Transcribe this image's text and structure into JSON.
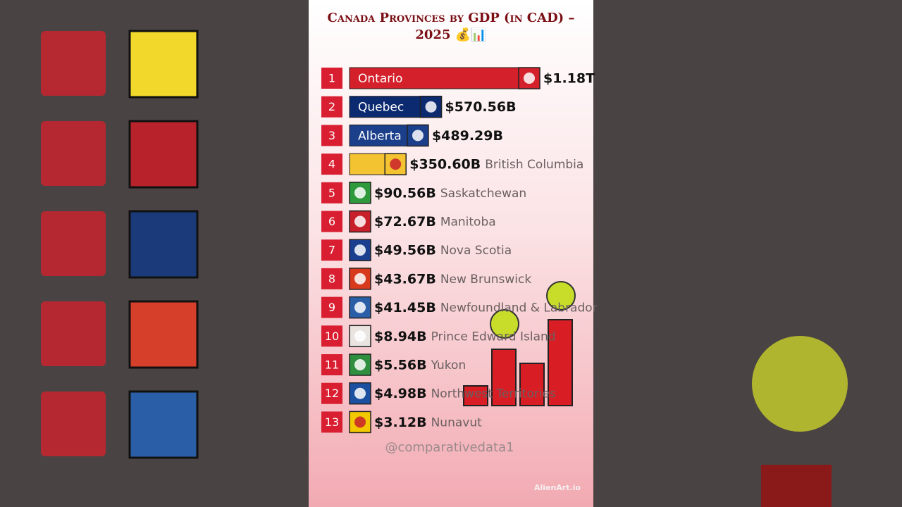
{
  "chart_data": {
    "type": "bar",
    "orientation": "horizontal",
    "title": "Canada Provinces by GDP (in CAD) – 2025 💰📊",
    "ranks": [
      "1",
      "2",
      "3",
      "4",
      "5",
      "6",
      "7",
      "8",
      "9",
      "10",
      "11",
      "12",
      "13"
    ],
    "categories": [
      "Ontario",
      "Quebec",
      "Alberta",
      "British Columbia",
      "Saskatchewan",
      "Manitoba",
      "Nova Scotia",
      "New Brunswick",
      "Newfoundland & Labrador",
      "Prince Edward Island",
      "Yukon",
      "Northwest Territories",
      "Nunavut"
    ],
    "values": [
      1180,
      570.56,
      489.29,
      350.6,
      90.56,
      72.67,
      49.56,
      43.67,
      41.45,
      8.94,
      5.56,
      4.98,
      3.12
    ],
    "value_labels": [
      "$1.18T",
      "$570.56B",
      "$489.29B",
      "$350.60B",
      "$90.56B",
      "$72.67B",
      "$49.56B",
      "$43.67B",
      "$41.45B",
      "$8.94B",
      "$5.56B",
      "$4.98B",
      "$3.12B"
    ],
    "colors": [
      "#d4202a",
      "#0b2a6f",
      "#1b3f8b",
      "#f3c332",
      "#2e9a3c",
      "#c8202a",
      "#1a3f8f",
      "#d83a1e",
      "#2a5fa8",
      "#e9e4e0",
      "#2f8f3e",
      "#1b4fa0",
      "#f2c800"
    ],
    "credit": "@comparativedata1",
    "watermark": "AlienArt.io"
  }
}
